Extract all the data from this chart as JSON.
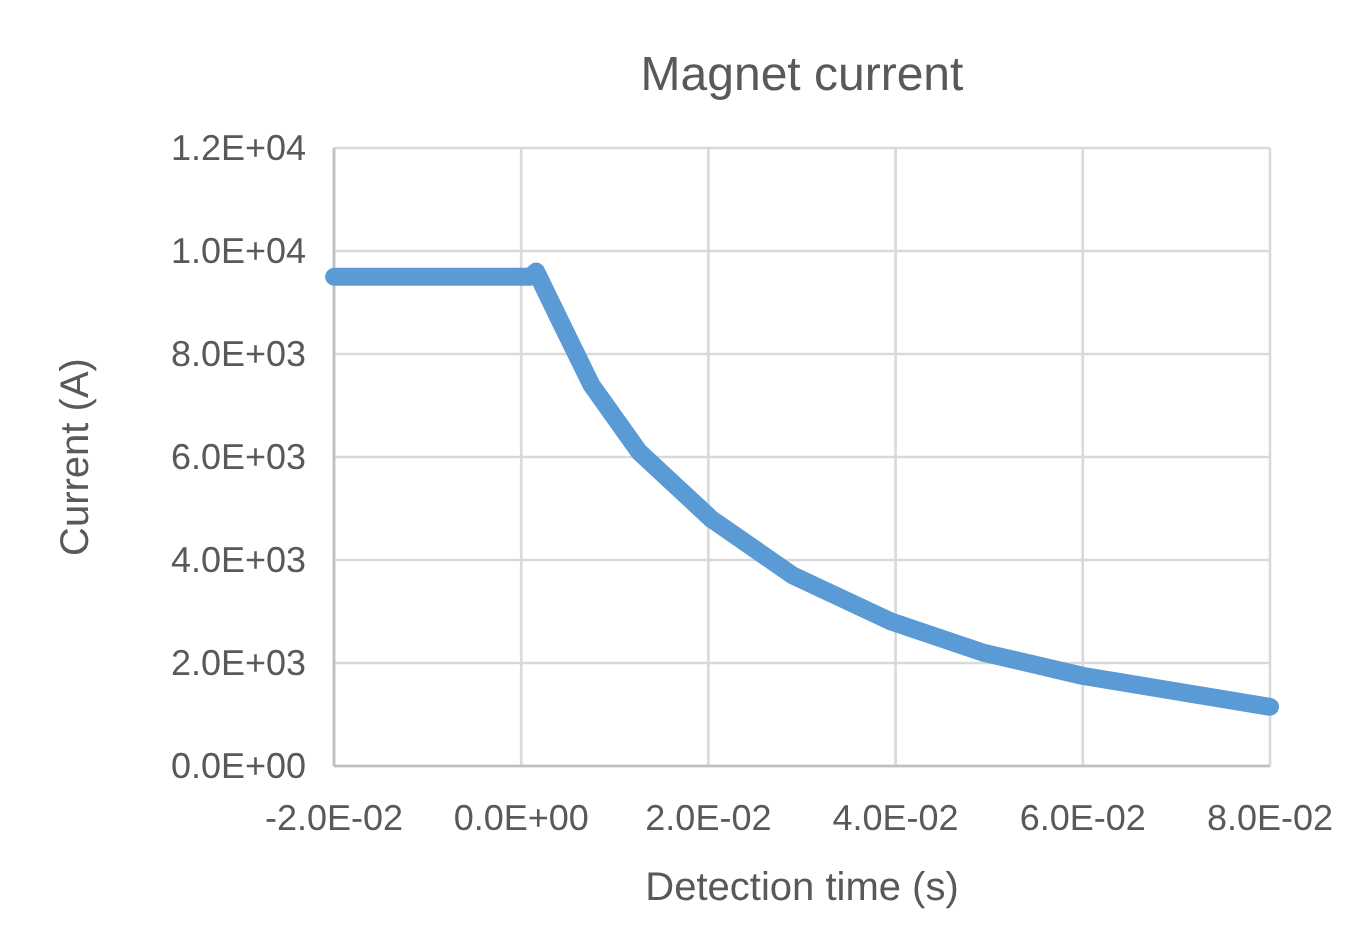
{
  "chart_data": {
    "type": "line",
    "title": "Magnet current",
    "xlabel": "Detection time (s)",
    "ylabel": "Current (A)",
    "series": [
      {
        "color": "#5b9bd5",
        "x": [
          -0.02,
          0.001,
          0.0016,
          0.004,
          0.0075,
          0.0126,
          0.0203,
          0.029,
          0.0396,
          0.0494,
          0.06,
          0.08
        ],
        "values": [
          9500,
          9500,
          9600,
          8700,
          7400,
          6100,
          4800,
          3700,
          2800,
          2200,
          1750,
          1150
        ]
      }
    ],
    "xlim": [
      -0.02,
      0.08
    ],
    "xticks": [
      {
        "value": -0.02,
        "label": "-2.0E-02"
      },
      {
        "value": 0,
        "label": "0.0E+00"
      },
      {
        "value": 0.02,
        "label": "2.0E-02"
      },
      {
        "value": 0.04,
        "label": "4.0E-02"
      },
      {
        "value": 0.06,
        "label": "6.0E-02"
      },
      {
        "value": 0.08,
        "label": "8.0E-02"
      }
    ],
    "ylim": [
      0,
      12000
    ],
    "yticks": [
      {
        "value": 0,
        "label": "0.0E+00"
      },
      {
        "value": 2000,
        "label": "2.0E+03"
      },
      {
        "value": 4000,
        "label": "4.0E+03"
      },
      {
        "value": 6000,
        "label": "6.0E+03"
      },
      {
        "value": 8000,
        "label": "8.0E+03"
      },
      {
        "value": 10000,
        "label": "1.0E+04"
      },
      {
        "value": 12000,
        "label": "1.2E+04"
      }
    ],
    "grid": true,
    "marker": "none",
    "line_style": "solid"
  }
}
